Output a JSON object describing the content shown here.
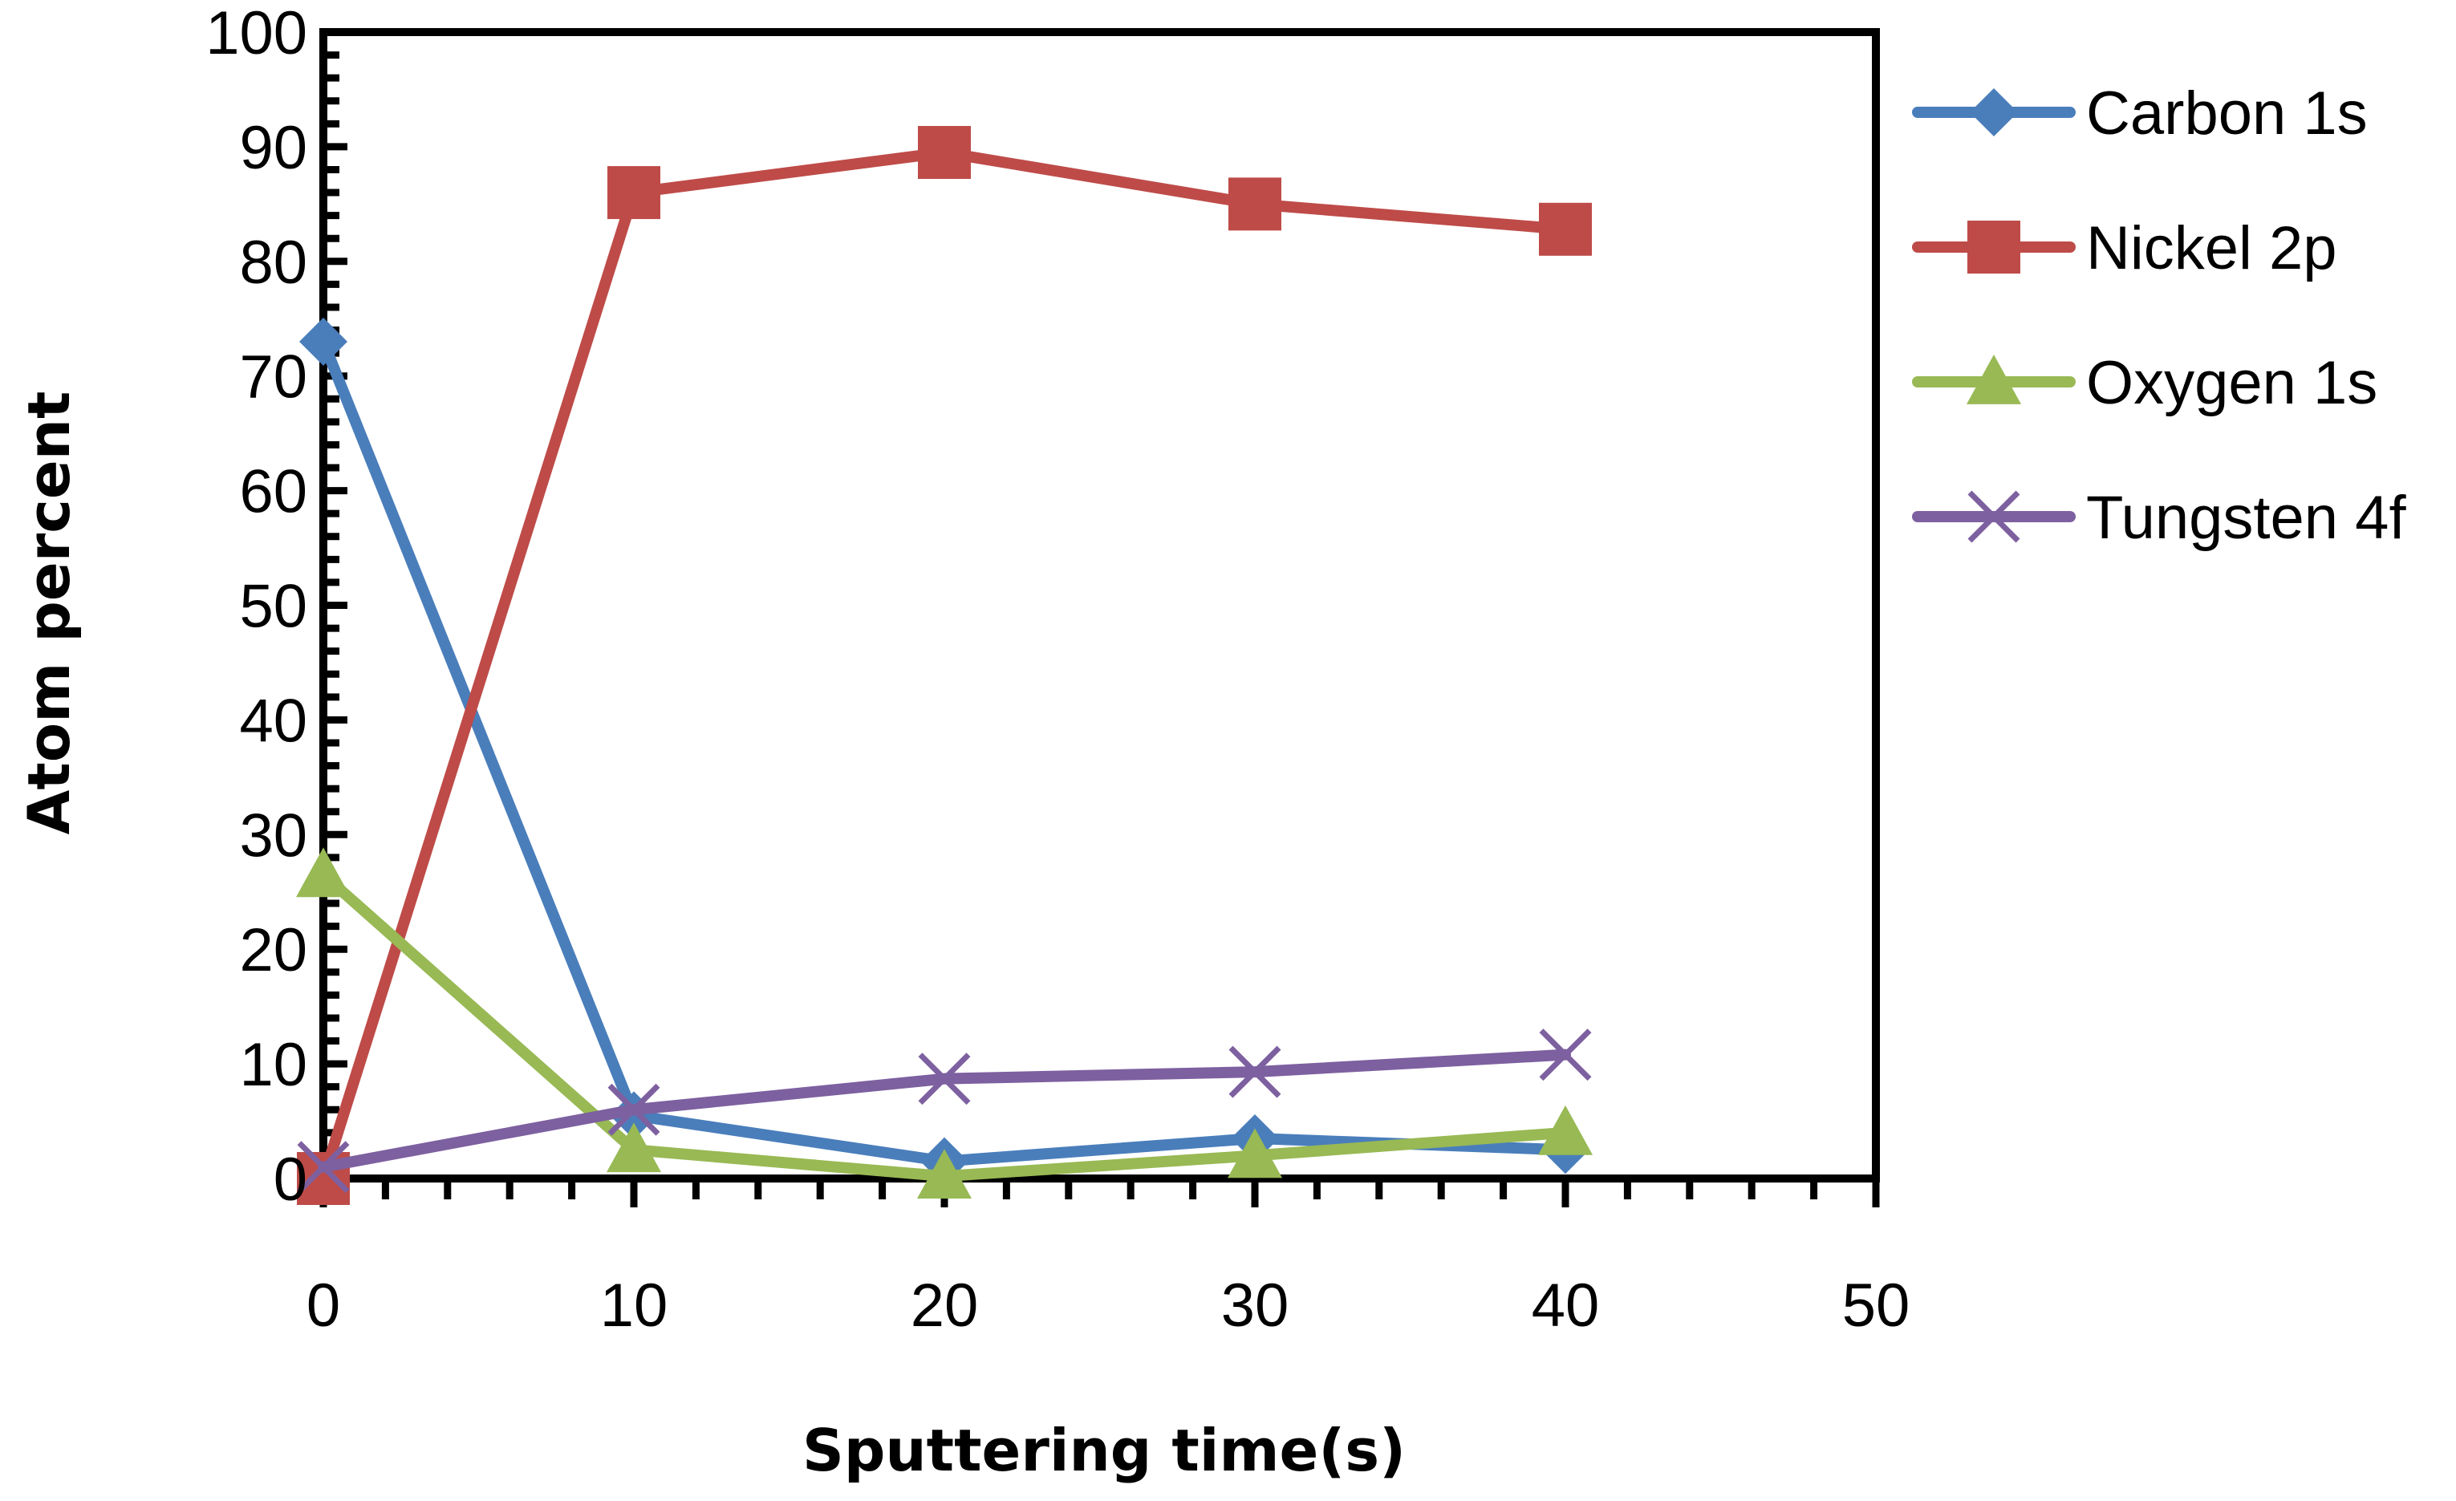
{
  "chart_data": {
    "type": "line",
    "title": "",
    "xlabel": "Sputtering time(s)",
    "ylabel": "Atom percent",
    "xlim": [
      0,
      50
    ],
    "ylim": [
      0,
      100
    ],
    "xticks": [
      0,
      10,
      20,
      30,
      40,
      50
    ],
    "yticks": [
      0,
      10,
      20,
      30,
      40,
      50,
      60,
      70,
      80,
      90,
      100
    ],
    "xtick_labels": [
      "0",
      "10",
      "20",
      "30",
      "40",
      "50"
    ],
    "ytick_labels": [
      "0",
      "10",
      "20",
      "30",
      "40",
      "50",
      "60",
      "70",
      "80",
      "90",
      "100"
    ],
    "grid": false,
    "legend_position": "right",
    "x": [
      0,
      10,
      20,
      30,
      40
    ],
    "series": [
      {
        "name": "Carbon 1s",
        "color": "#4a7ebb",
        "marker": "diamond",
        "values": [
          73,
          5.5,
          1.5,
          3.5,
          2.5
        ]
      },
      {
        "name": "Nickel 2p",
        "color": "#be4b48",
        "marker": "square",
        "values": [
          0,
          86,
          89.5,
          85,
          82.8
        ]
      },
      {
        "name": "Oxygen 1s",
        "color": "#98b954",
        "marker": "triangle",
        "values": [
          26.5,
          2.5,
          0.2,
          2,
          4
        ]
      },
      {
        "name": "Tungsten 4f",
        "color": "#7d60a0",
        "marker": "x",
        "values": [
          1,
          6,
          8.7,
          9.3,
          10.8
        ]
      }
    ]
  }
}
